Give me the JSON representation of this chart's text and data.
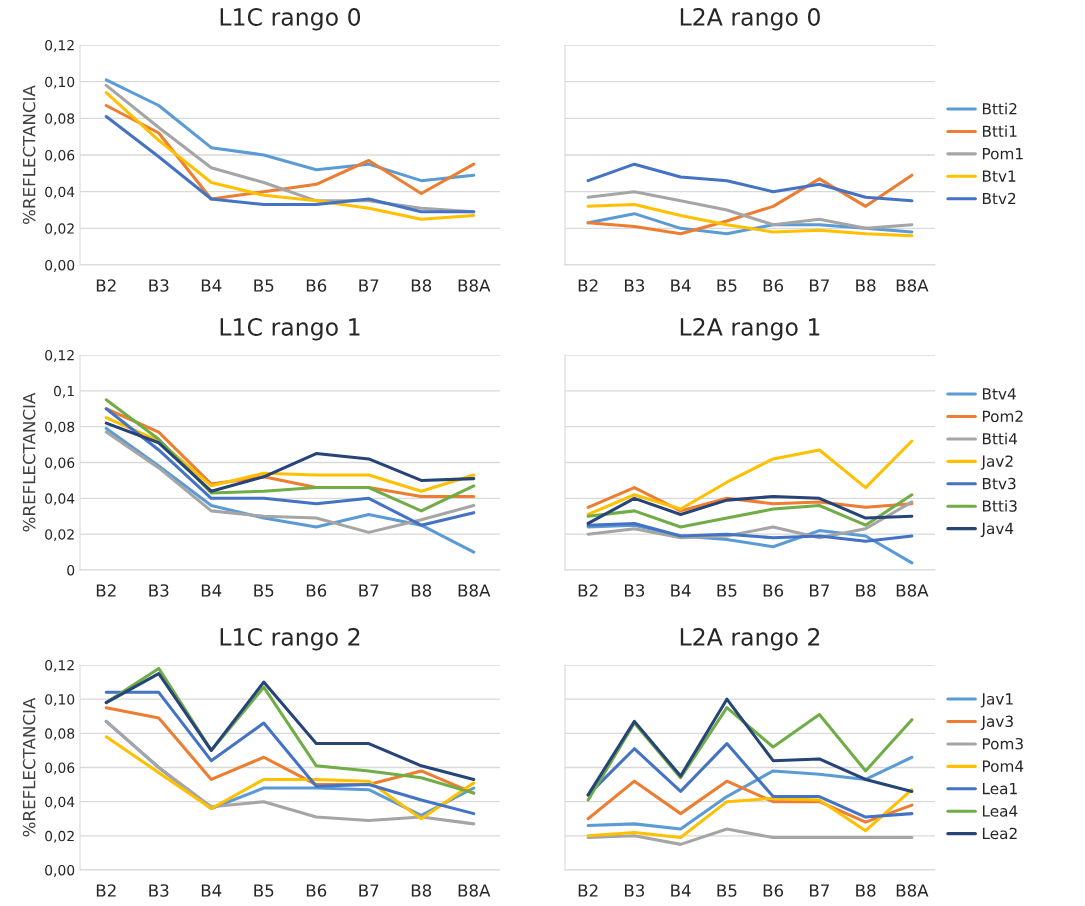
{
  "chart_data": [
    {
      "type": "line",
      "title": "L1C rango 0",
      "ylabel": "%REFLECTANCIA",
      "categories": [
        "B2",
        "B3",
        "B4",
        "B5",
        "B6",
        "B7",
        "B8",
        "B8A"
      ],
      "ylim": [
        0,
        0.12
      ],
      "yticks": [
        {
          "value": 0,
          "label": "0,00"
        },
        {
          "value": 0.02,
          "label": "0,02"
        },
        {
          "value": 0.04,
          "label": "0,04"
        },
        {
          "value": 0.06,
          "label": "0,06"
        },
        {
          "value": 0.08,
          "label": "0,08"
        },
        {
          "value": 0.1,
          "label": "0,10"
        },
        {
          "value": 0.12,
          "label": "0,12"
        }
      ],
      "grid": "y",
      "legend": false,
      "series": [
        {
          "color": "#5b9bd5",
          "values": [
            0.101,
            0.087,
            0.064,
            0.06,
            0.052,
            0.055,
            0.046,
            0.049
          ]
        },
        {
          "color": "#ed7d31",
          "values": [
            0.087,
            0.072,
            0.036,
            0.04,
            0.044,
            0.057,
            0.039,
            0.055
          ]
        },
        {
          "color": "#a5a5a5",
          "values": [
            0.098,
            0.075,
            0.053,
            0.045,
            0.035,
            0.035,
            0.031,
            0.029
          ]
        },
        {
          "color": "#ffc000",
          "values": [
            0.094,
            0.068,
            0.045,
            0.038,
            0.035,
            0.031,
            0.025,
            0.027
          ]
        },
        {
          "color": "#4472c4",
          "values": [
            0.081,
            0.059,
            0.036,
            0.033,
            0.033,
            0.036,
            0.029,
            0.029
          ]
        }
      ]
    },
    {
      "type": "line",
      "title": "L2A rango 0",
      "categories": [
        "B2",
        "B3",
        "B4",
        "B5",
        "B6",
        "B7",
        "B8",
        "B8A"
      ],
      "ylim": [
        0,
        0.12
      ],
      "yticks": [
        0,
        0.02,
        0.04,
        0.06,
        0.08,
        0.1,
        0.12
      ],
      "tick_labels": "x",
      "grid": "y",
      "legend": "right",
      "series": [
        {
          "name": "Btti2",
          "color": "#5b9bd5",
          "values": [
            0.023,
            0.028,
            0.02,
            0.017,
            0.022,
            0.022,
            0.02,
            0.018
          ]
        },
        {
          "name": "Btti1",
          "color": "#ed7d31",
          "values": [
            0.023,
            0.021,
            0.017,
            0.024,
            0.032,
            0.047,
            0.032,
            0.049
          ]
        },
        {
          "name": "Pom1",
          "color": "#a5a5a5",
          "values": [
            0.037,
            0.04,
            0.035,
            0.03,
            0.022,
            0.025,
            0.02,
            0.022
          ]
        },
        {
          "name": "Btv1",
          "color": "#ffc000",
          "values": [
            0.032,
            0.033,
            0.027,
            0.022,
            0.018,
            0.019,
            0.017,
            0.016
          ]
        },
        {
          "name": "Btv2",
          "color": "#4472c4",
          "values": [
            0.046,
            0.055,
            0.048,
            0.046,
            0.04,
            0.044,
            0.037,
            0.035
          ]
        }
      ]
    },
    {
      "type": "line",
      "title": "L1C rango 1",
      "ylabel": "%REFLECTANCIA",
      "categories": [
        "B2",
        "B3",
        "B4",
        "B5",
        "B6",
        "B7",
        "B8",
        "B8A"
      ],
      "ylim": [
        0,
        0.12
      ],
      "yticks": [
        0,
        {
          "value": 0.02,
          "label": "0,02"
        },
        {
          "value": 0.04,
          "label": "0,04"
        },
        {
          "value": 0.06,
          "label": "0,06"
        },
        {
          "value": 0.08,
          "label": "0,08"
        },
        {
          "value": 0.1,
          "label": "0,1"
        },
        {
          "value": 0.12,
          "label": "0,12"
        }
      ],
      "grid": "y",
      "legend": false,
      "series": [
        {
          "color": "#5b9bd5",
          "values": [
            0.079,
            0.058,
            0.036,
            0.029,
            0.024,
            0.031,
            0.025,
            0.01
          ]
        },
        {
          "color": "#ed7d31",
          "values": [
            0.09,
            0.077,
            0.048,
            0.052,
            0.046,
            0.046,
            0.041,
            0.041
          ]
        },
        {
          "color": "#a5a5a5",
          "values": [
            0.077,
            0.057,
            0.033,
            0.03,
            0.029,
            0.021,
            0.028,
            0.036
          ]
        },
        {
          "color": "#ffc000",
          "values": [
            0.085,
            0.072,
            0.047,
            0.054,
            0.053,
            0.053,
            0.044,
            0.053
          ]
        },
        {
          "color": "#4472c4",
          "values": [
            0.09,
            0.067,
            0.04,
            0.04,
            0.037,
            0.04,
            0.025,
            0.032
          ]
        },
        {
          "color": "#70ad47",
          "values": [
            0.095,
            0.073,
            0.043,
            0.044,
            0.046,
            0.046,
            0.033,
            0.047
          ]
        },
        {
          "color": "#264478",
          "values": [
            0.082,
            0.071,
            0.044,
            0.052,
            0.065,
            0.062,
            0.05,
            0.051
          ]
        }
      ]
    },
    {
      "type": "line",
      "title": "L2A rango 1",
      "categories": [
        "B2",
        "B3",
        "B4",
        "B5",
        "B6",
        "B7",
        "B8",
        "B8A"
      ],
      "ylim": [
        0,
        0.12
      ],
      "yticks": [
        0,
        0.02,
        0.04,
        0.06,
        0.08,
        0.1,
        0.12
      ],
      "tick_labels": "x",
      "grid": "y",
      "legend": "right",
      "series": [
        {
          "name": "Btv4",
          "color": "#5b9bd5",
          "values": [
            0.024,
            0.025,
            0.019,
            0.017,
            0.013,
            0.022,
            0.019,
            0.004
          ]
        },
        {
          "name": "Pom2",
          "color": "#ed7d31",
          "values": [
            0.035,
            0.046,
            0.033,
            0.04,
            0.037,
            0.038,
            0.035,
            0.037
          ]
        },
        {
          "name": "Btti4",
          "color": "#a5a5a5",
          "values": [
            0.02,
            0.023,
            0.018,
            0.019,
            0.024,
            0.018,
            0.023,
            0.038
          ]
        },
        {
          "name": "Jav2",
          "color": "#ffc000",
          "values": [
            0.031,
            0.042,
            0.034,
            0.049,
            0.062,
            0.067,
            0.046,
            0.072
          ]
        },
        {
          "name": "Btv3",
          "color": "#4472c4",
          "values": [
            0.025,
            0.026,
            0.019,
            0.02,
            0.018,
            0.019,
            0.016,
            0.019
          ]
        },
        {
          "name": "Btti3",
          "color": "#70ad47",
          "values": [
            0.03,
            0.033,
            0.024,
            0.029,
            0.034,
            0.036,
            0.025,
            0.042
          ]
        },
        {
          "name": "Jav4",
          "color": "#264478",
          "values": [
            0.026,
            0.04,
            0.031,
            0.039,
            0.041,
            0.04,
            0.029,
            0.03
          ]
        }
      ]
    },
    {
      "type": "line",
      "title": "L1C rango 2",
      "ylabel": "%REFLECTANCIA",
      "categories": [
        "B2",
        "B3",
        "B4",
        "B5",
        "B6",
        "B7",
        "B8",
        "B8A"
      ],
      "ylim": [
        0,
        0.12
      ],
      "yticks": [
        {
          "value": 0,
          "label": "0,00"
        },
        {
          "value": 0.02,
          "label": "0,02"
        },
        {
          "value": 0.04,
          "label": "0,04"
        },
        {
          "value": 0.06,
          "label": "0,06"
        },
        {
          "value": 0.08,
          "label": "0,08"
        },
        {
          "value": 0.1,
          "label": "0,10"
        },
        {
          "value": 0.12,
          "label": "0,12"
        }
      ],
      "grid": "y",
      "legend": false,
      "series": [
        {
          "color": "#5b9bd5",
          "values": [
            0.087,
            0.06,
            0.036,
            0.048,
            0.048,
            0.047,
            0.032,
            0.048
          ]
        },
        {
          "color": "#ed7d31",
          "values": [
            0.095,
            0.089,
            0.053,
            0.066,
            0.05,
            0.05,
            0.058,
            0.045
          ]
        },
        {
          "color": "#a5a5a5",
          "values": [
            0.087,
            0.06,
            0.037,
            0.04,
            0.031,
            0.029,
            0.031,
            0.027
          ]
        },
        {
          "color": "#ffc000",
          "values": [
            0.078,
            0.057,
            0.036,
            0.053,
            0.053,
            0.052,
            0.03,
            0.051
          ]
        },
        {
          "color": "#4472c4",
          "values": [
            0.104,
            0.104,
            0.064,
            0.086,
            0.049,
            0.05,
            0.041,
            0.033
          ]
        },
        {
          "color": "#70ad47",
          "values": [
            0.098,
            0.118,
            0.07,
            0.107,
            0.061,
            0.058,
            0.054,
            0.045
          ]
        },
        {
          "color": "#264478",
          "values": [
            0.098,
            0.115,
            0.07,
            0.11,
            0.074,
            0.074,
            0.061,
            0.053
          ]
        }
      ]
    },
    {
      "type": "line",
      "title": "L2A rango 2",
      "categories": [
        "B2",
        "B3",
        "B4",
        "B5",
        "B6",
        "B7",
        "B8",
        "B8A"
      ],
      "ylim": [
        0,
        0.12
      ],
      "yticks": [
        0,
        0.02,
        0.04,
        0.06,
        0.08,
        0.1,
        0.12
      ],
      "tick_labels": "x",
      "grid": "y",
      "legend": "right",
      "series": [
        {
          "name": "Jav1",
          "color": "#5b9bd5",
          "values": [
            0.026,
            0.027,
            0.024,
            0.043,
            0.058,
            0.056,
            0.053,
            0.066
          ]
        },
        {
          "name": "Jav3",
          "color": "#ed7d31",
          "values": [
            0.03,
            0.052,
            0.033,
            0.052,
            0.04,
            0.04,
            0.028,
            0.038
          ]
        },
        {
          "name": "Pom3",
          "color": "#a5a5a5",
          "values": [
            0.019,
            0.02,
            0.015,
            0.024,
            0.019,
            0.019,
            0.019,
            0.019
          ]
        },
        {
          "name": "Pom4",
          "color": "#ffc000",
          "values": [
            0.02,
            0.022,
            0.019,
            0.04,
            0.042,
            0.041,
            0.023,
            0.047
          ]
        },
        {
          "name": "Lea1",
          "color": "#4472c4",
          "values": [
            0.044,
            0.071,
            0.046,
            0.074,
            0.043,
            0.043,
            0.031,
            0.033
          ]
        },
        {
          "name": "Lea4",
          "color": "#70ad47",
          "values": [
            0.041,
            0.086,
            0.054,
            0.095,
            0.072,
            0.091,
            0.058,
            0.088
          ]
        },
        {
          "name": "Lea2",
          "color": "#264478",
          "values": [
            0.044,
            0.087,
            0.055,
            0.1,
            0.064,
            0.065,
            0.053,
            0.046
          ]
        }
      ]
    }
  ]
}
